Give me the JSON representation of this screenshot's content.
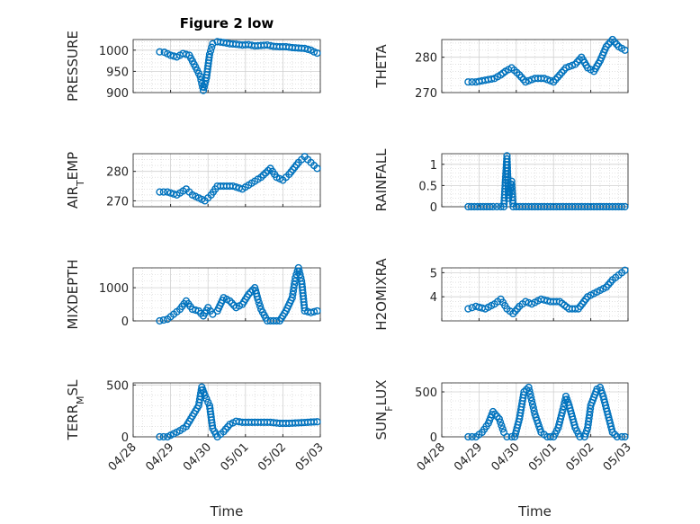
{
  "chart_data": [
    {
      "type": "scatter",
      "title": "Figure 2 low",
      "ylabel": "PRESSURE",
      "xlabel": "",
      "xlim": [
        "04/28",
        "05/03"
      ],
      "ylim": [
        900,
        1025
      ],
      "yticks": [
        900,
        950,
        1000
      ],
      "ytick_labels": [
        "900",
        "950",
        "1000"
      ],
      "grid": true,
      "x": [
        "04/28 17:00",
        "04/28 20:00",
        "04/29 00:00",
        "04/29 04:00",
        "04/29 08:00",
        "04/29 12:00",
        "04/29 16:00",
        "04/29 19:00",
        "04/29 21:00",
        "04/29 23:00",
        "04/30 01:00",
        "04/30 03:00",
        "04/30 06:00",
        "04/30 10:00",
        "04/30 14:00",
        "04/30 18:00",
        "04/30 22:00",
        "05/01 02:00",
        "05/01 06:00",
        "05/01 10:00",
        "05/01 14:00",
        "05/01 18:00",
        "05/01 22:00",
        "05/02 02:00",
        "05/02 06:00",
        "05/02 10:00",
        "05/02 14:00",
        "05/02 18:00",
        "05/02 20:00",
        "05/02 22:00"
      ],
      "y": [
        996,
        995,
        988,
        984,
        992,
        988,
        960,
        938,
        905,
        935,
        990,
        1015,
        1020,
        1018,
        1015,
        1014,
        1012,
        1013,
        1010,
        1011,
        1012,
        1009,
        1008,
        1008,
        1006,
        1005,
        1004,
        1000,
        996,
        993
      ]
    },
    {
      "type": "scatter",
      "title": "",
      "ylabel": "THETA",
      "xlabel": "",
      "xlim": [
        "04/28",
        "05/03"
      ],
      "ylim": [
        270,
        285
      ],
      "yticks": [
        270,
        280
      ],
      "ytick_labels": [
        "270",
        "280"
      ],
      "grid": true,
      "x": [
        "04/28 17:00",
        "04/28 22:00",
        "04/29 04:00",
        "04/29 10:00",
        "04/29 14:00",
        "04/29 17:00",
        "04/29 21:00",
        "04/30 02:00",
        "04/30 06:00",
        "04/30 12:00",
        "04/30 18:00",
        "05/01 00:00",
        "05/01 04:00",
        "05/01 08:00",
        "05/01 14:00",
        "05/01 18:00",
        "05/01 22:00",
        "05/02 02:00",
        "05/02 06:00",
        "05/02 10:00",
        "05/02 14:00",
        "05/02 18:00",
        "05/02 22:00"
      ],
      "y": [
        273,
        273,
        273.5,
        274,
        275,
        276,
        277,
        275,
        273,
        274,
        274,
        273,
        275,
        277,
        278,
        280,
        277,
        276,
        279,
        283,
        285,
        283,
        282
      ]
    },
    {
      "type": "scatter",
      "title": "",
      "ylabel": "AIR_TEMP",
      "xlabel": "",
      "xlim": [
        "04/28",
        "05/03"
      ],
      "ylim": [
        268,
        286
      ],
      "yticks": [
        270,
        280
      ],
      "ytick_labels": [
        "270",
        "280"
      ],
      "grid": true,
      "x": [
        "04/28 17:00",
        "04/28 22:00",
        "04/29 04:00",
        "04/29 10:00",
        "04/29 14:00",
        "04/29 18:00",
        "04/29 22:00",
        "04/30 02:00",
        "04/30 06:00",
        "04/30 10:00",
        "04/30 16:00",
        "04/30 22:00",
        "05/01 04:00",
        "05/01 10:00",
        "05/01 16:00",
        "05/01 20:00",
        "05/02 00:00",
        "05/02 04:00",
        "05/02 10:00",
        "05/02 14:00",
        "05/02 18:00",
        "05/02 22:00"
      ],
      "y": [
        273,
        273,
        272,
        274,
        272,
        271,
        270,
        272,
        275,
        275,
        275,
        274,
        276,
        278,
        281,
        278,
        277,
        279,
        283,
        285,
        283,
        281
      ]
    },
    {
      "type": "scatter",
      "title": "",
      "ylabel": "RAINFALL",
      "xlabel": "",
      "xlim": [
        "04/28",
        "05/03"
      ],
      "ylim": [
        0,
        1.25
      ],
      "yticks": [
        0,
        0.5,
        1
      ],
      "ytick_labels": [
        "0",
        "0.5",
        "1"
      ],
      "grid": true,
      "x": [
        "04/28 17:00",
        "04/29 01:00",
        "04/29 09:00",
        "04/29 14:00",
        "04/29 16:00",
        "04/29 18:00",
        "04/29 19:00",
        "04/29 21:00",
        "04/29 22:00",
        "04/30 00:00",
        "04/30 06:00",
        "04/30 12:00",
        "04/30 18:00",
        "05/01 00:00",
        "05/01 06:00",
        "05/01 12:00",
        "05/01 18:00",
        "05/02 00:00",
        "05/02 06:00",
        "05/02 12:00",
        "05/02 18:00",
        "05/02 22:00"
      ],
      "y": [
        0,
        0,
        0,
        0,
        0,
        1.2,
        0.2,
        0.6,
        0,
        0,
        0,
        0,
        0,
        0,
        0,
        0,
        0,
        0,
        0,
        0,
        0,
        0
      ]
    },
    {
      "type": "scatter",
      "title": "",
      "ylabel": "MIXDEPTH",
      "xlabel": "",
      "xlim": [
        "04/28",
        "05/03"
      ],
      "ylim": [
        0,
        1600
      ],
      "yticks": [
        0,
        1000
      ],
      "ytick_labels": [
        "0",
        "1000"
      ],
      "grid": true,
      "x": [
        "04/28 17:00",
        "04/28 22:00",
        "04/29 02:00",
        "04/29 06:00",
        "04/29 10:00",
        "04/29 14:00",
        "04/29 18:00",
        "04/29 21:00",
        "04/30 00:00",
        "04/30 03:00",
        "04/30 06:00",
        "04/30 10:00",
        "04/30 14:00",
        "04/30 18:00",
        "04/30 22:00",
        "05/01 02:00",
        "05/01 06:00",
        "05/01 08:00",
        "05/01 10:00",
        "05/01 14:00",
        "05/01 18:00",
        "05/01 22:00",
        "05/02 02:00",
        "05/02 06:00",
        "05/02 08:00",
        "05/02 10:00",
        "05/02 12:00",
        "05/02 14:00",
        "05/02 18:00",
        "05/02 22:00"
      ],
      "y": [
        0,
        50,
        200,
        350,
        600,
        350,
        300,
        150,
        400,
        200,
        300,
        700,
        600,
        400,
        500,
        800,
        1000,
        650,
        350,
        0,
        0,
        0,
        300,
        700,
        1300,
        1600,
        1200,
        300,
        250,
        300
      ]
    },
    {
      "type": "scatter",
      "title": "",
      "ylabel": "H2OMIXRA",
      "xlabel": "",
      "xlim": [
        "04/28",
        "05/03"
      ],
      "ylim": [
        3.0,
        5.2
      ],
      "yticks": [
        4,
        5
      ],
      "ytick_labels": [
        "4",
        "5"
      ],
      "grid": true,
      "x": [
        "04/28 17:00",
        "04/28 22:00",
        "04/29 04:00",
        "04/29 10:00",
        "04/29 14:00",
        "04/29 18:00",
        "04/29 22:00",
        "04/30 02:00",
        "04/30 06:00",
        "04/30 10:00",
        "04/30 16:00",
        "04/30 22:00",
        "05/01 04:00",
        "05/01 10:00",
        "05/01 16:00",
        "05/01 22:00",
        "05/02 04:00",
        "05/02 10:00",
        "05/02 14:00",
        "05/02 18:00",
        "05/02 22:00"
      ],
      "y": [
        3.5,
        3.6,
        3.5,
        3.7,
        3.9,
        3.5,
        3.3,
        3.6,
        3.8,
        3.7,
        3.9,
        3.8,
        3.8,
        3.5,
        3.5,
        4.0,
        4.2,
        4.4,
        4.7,
        4.9,
        5.1
      ]
    },
    {
      "type": "scatter",
      "title": "",
      "ylabel": "TERR_MSL",
      "xlabel": "Time",
      "xlim": [
        "04/28",
        "05/03"
      ],
      "ylim": [
        0,
        520
      ],
      "yticks": [
        0,
        500
      ],
      "ytick_labels": [
        "0",
        "500"
      ],
      "grid": true,
      "x": [
        "04/28 17:00",
        "04/28 22:00",
        "04/29 02:00",
        "04/29 06:00",
        "04/29 10:00",
        "04/29 14:00",
        "04/29 18:00",
        "04/29 20:00",
        "04/29 22:00",
        "04/30 01:00",
        "04/30 03:00",
        "04/30 06:00",
        "04/30 10:00",
        "04/30 14:00",
        "04/30 18:00",
        "04/30 22:00",
        "05/01 04:00",
        "05/01 10:00",
        "05/01 16:00",
        "05/01 22:00",
        "05/02 04:00",
        "05/02 10:00",
        "05/02 16:00",
        "05/02 22:00"
      ],
      "y": [
        0,
        0,
        30,
        60,
        100,
        200,
        300,
        480,
        400,
        300,
        80,
        0,
        50,
        120,
        150,
        140,
        140,
        140,
        140,
        130,
        130,
        135,
        140,
        145
      ]
    },
    {
      "type": "scatter",
      "title": "",
      "ylabel": "SUN_FLUX",
      "xlabel": "Time",
      "xlim": [
        "04/28",
        "05/03"
      ],
      "ylim": [
        0,
        600
      ],
      "yticks": [
        0,
        500
      ],
      "ytick_labels": [
        "0",
        "500"
      ],
      "grid": true,
      "x": [
        "04/28 17:00",
        "04/28 22:00",
        "04/29 02:00",
        "04/29 06:00",
        "04/29 09:00",
        "04/29 13:00",
        "04/29 16:00",
        "04/29 18:00",
        "04/29 21:00",
        "04/29 23:00",
        "04/30 02:00",
        "04/30 05:00",
        "04/30 08:00",
        "04/30 10:00",
        "04/30 12:00",
        "04/30 16:00",
        "04/30 20:00",
        "05/01 00:00",
        "05/01 03:00",
        "05/01 06:00",
        "05/01 08:00",
        "05/01 10:00",
        "05/01 14:00",
        "05/01 17:00",
        "05/01 20:00",
        "05/01 22:00",
        "05/02 00:00",
        "05/02 04:00",
        "05/02 06:00",
        "05/02 08:00",
        "05/02 11:00",
        "05/02 14:00",
        "05/02 17:00",
        "05/02 20:00",
        "05/02 22:00"
      ],
      "y": [
        0,
        0,
        50,
        150,
        280,
        200,
        50,
        0,
        0,
        0,
        200,
        500,
        550,
        400,
        250,
        50,
        0,
        0,
        100,
        300,
        450,
        350,
        100,
        0,
        0,
        100,
        350,
        530,
        550,
        450,
        250,
        50,
        0,
        0,
        0
      ]
    }
  ],
  "x_tick_labels": [
    "04/28",
    "04/29",
    "04/30",
    "05/01",
    "05/02",
    "05/03"
  ],
  "colors": {
    "marker": "#0072BD",
    "axis": "#262626",
    "grid": "#d0d0d0"
  }
}
